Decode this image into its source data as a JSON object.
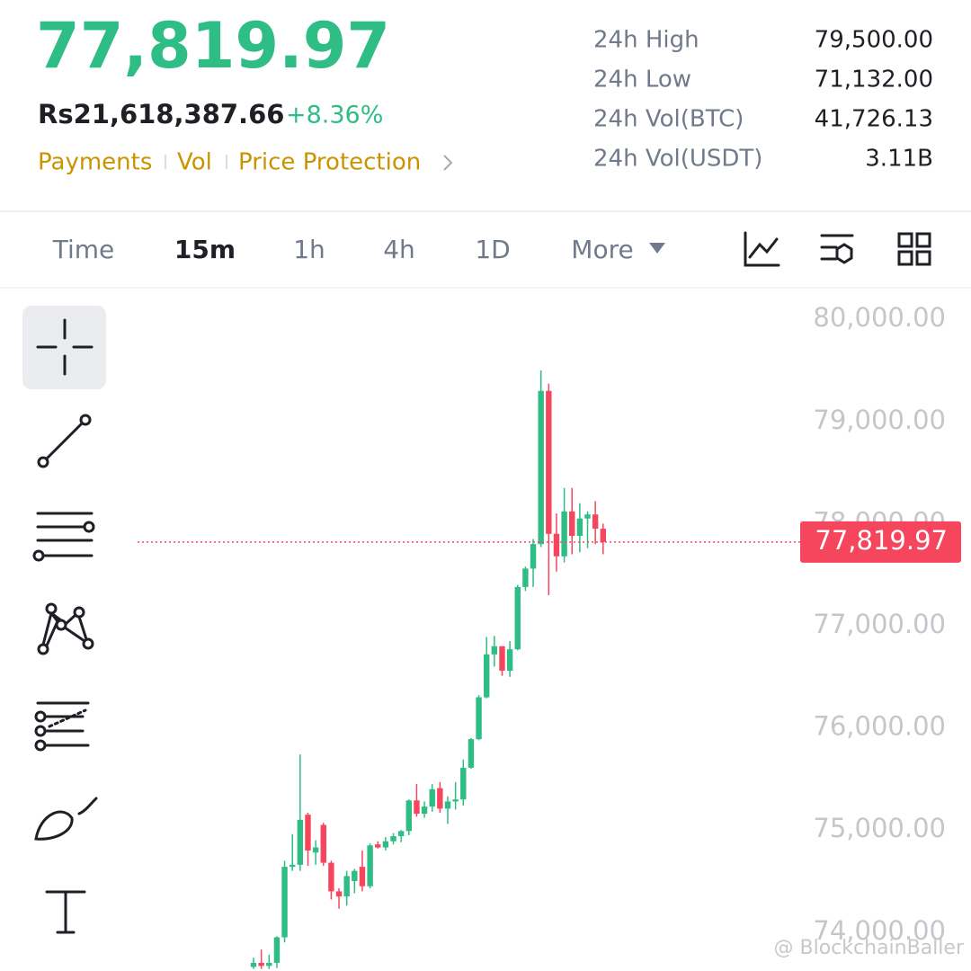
{
  "header": {
    "price": "77,819.97",
    "fiat_price": "Rs21,618,387.66",
    "change": "+8.36%",
    "links": [
      "Payments",
      "Vol",
      "Price Protection"
    ],
    "stats": [
      {
        "label": "24h High",
        "value": "79,500.00"
      },
      {
        "label": "24h Low",
        "value": "71,132.00"
      },
      {
        "label": "24h Vol(BTC)",
        "value": "41,726.13"
      },
      {
        "label": "24h Vol(USDT)",
        "value": "3.11B"
      }
    ]
  },
  "tabs": [
    "Time",
    "15m",
    "1h",
    "4h",
    "1D",
    "More"
  ],
  "watermark": "@ BlockchainBaller",
  "chart_data": {
    "type": "candlestick",
    "up_color": "#2ebd85",
    "down_color": "#f6465d",
    "ylim": [
      73620,
      80310
    ],
    "yticks": [
      {
        "value": 74000,
        "label": "74,000.00"
      },
      {
        "value": 75000,
        "label": "75,000.00"
      },
      {
        "value": 76000,
        "label": "76,000.00"
      },
      {
        "value": 77000,
        "label": "77,000.00"
      },
      {
        "value": 78000,
        "label": "78,000.00"
      },
      {
        "value": 79000,
        "label": "79,000.00"
      },
      {
        "value": 80000,
        "label": "80,000.00"
      }
    ],
    "last_price": {
      "value": 77819.97,
      "label": "77,819.97"
    },
    "open": [
      73660,
      73700,
      73670,
      73700,
      73950,
      74640,
      74660,
      75150,
      74780,
      75050,
      74680,
      74400,
      74350,
      74500,
      74640,
      74450,
      74860,
      74830,
      74890,
      74940,
      74990,
      75290,
      75160,
      75230,
      75410,
      75210,
      75280,
      75300,
      75610,
      75890,
      76300,
      76720,
      76800,
      76560,
      76770,
      77380,
      77560,
      77800,
      79300,
      77900,
      77680,
      78120,
      77880,
      78050,
      78090,
      77950
    ],
    "high": [
      73750,
      73830,
      73780,
      73960,
      74700,
      74960,
      75740,
      75170,
      74900,
      75070,
      74700,
      74430,
      74600,
      74620,
      74800,
      74870,
      74890,
      74930,
      74970,
      75000,
      75300,
      75450,
      75280,
      75450,
      75470,
      75330,
      75470,
      75690,
      75900,
      76320,
      76890,
      76900,
      76800,
      76850,
      77400,
      77580,
      77850,
      79500,
      79370,
      78100,
      78350,
      78350,
      78200,
      78120,
      78220,
      78000
    ],
    "low": [
      73640,
      73640,
      73640,
      73650,
      73900,
      74600,
      74600,
      74650,
      74660,
      74650,
      74320,
      74230,
      74260,
      74380,
      74400,
      74430,
      74820,
      74800,
      74860,
      74880,
      74950,
      75130,
      75120,
      75180,
      75170,
      75060,
      75200,
      75240,
      75600,
      75880,
      76290,
      76600,
      76510,
      76500,
      76760,
      77340,
      77380,
      77770,
      77300,
      77530,
      77620,
      77700,
      77720,
      77760,
      77800,
      77700
    ],
    "close": [
      73700,
      73670,
      73700,
      73950,
      74640,
      74660,
      75100,
      74800,
      74830,
      74680,
      74400,
      74350,
      74550,
      74600,
      74450,
      74850,
      74830,
      74890,
      74940,
      74990,
      75290,
      75160,
      75230,
      75400,
      75210,
      75280,
      75300,
      75610,
      75890,
      76300,
      76720,
      76800,
      76560,
      76770,
      77380,
      77560,
      77800,
      79300,
      77900,
      77680,
      78120,
      77880,
      78050,
      78090,
      77950,
      77820
    ]
  }
}
